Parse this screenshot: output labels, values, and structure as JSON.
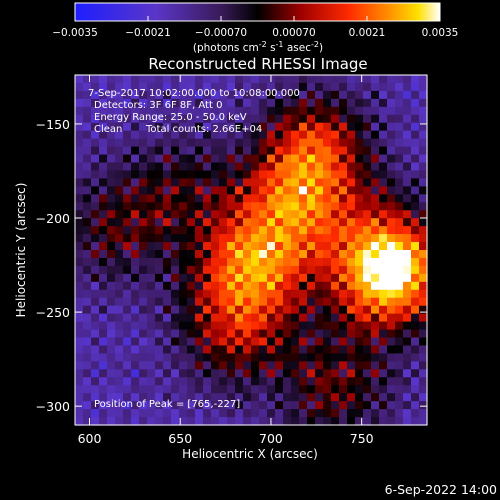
{
  "colorbar": {
    "tick_labels": [
      "-0.0035",
      "-0.0021",
      "-0.00070",
      "0.00070",
      "0.0021",
      "0.0035"
    ],
    "range": [
      -0.0035,
      0.0035
    ],
    "unit_parts": [
      "(photons cm",
      "-2",
      " s",
      "-1",
      " asec",
      "-2",
      ")"
    ]
  },
  "chart_data": {
    "type": "heatmap",
    "title": "Reconstructed RHESSI Image",
    "xlabel": "Heliocentric X (arcsec)",
    "ylabel": "Heliocentric Y (arcsec)",
    "xlim": [
      592,
      786
    ],
    "ylim": [
      -310,
      -124
    ],
    "x_ticks": [
      600,
      650,
      700,
      750
    ],
    "x_tick_labels": [
      "600",
      "650",
      "700",
      "750"
    ],
    "y_ticks": [
      -150,
      -200,
      -250,
      -300
    ],
    "y_tick_labels": [
      "-150",
      "-200",
      "-250",
      "-300"
    ],
    "colormap": "RHESSI red-temperature (blue → purple → black → red → orange → yellow → white)",
    "peak": [
      765,
      -227
    ],
    "annotations": {
      "line1": "7-Sep-2017 10:02:00.000 to 10:08:00.000",
      "line2": "Detectors: 3F 6F 8F, Att 0",
      "line3": "Energy Range: 25.0 - 50.0 keV",
      "line4_a": "Clean",
      "line4_b": "Total counts: 2.66E+04",
      "peak_text": "Position of Peak = [765,-227]"
    },
    "sources": [
      {
        "x": 765,
        "y": -227,
        "strength": 1.0
      },
      {
        "x": 725,
        "y": -165,
        "strength": 0.55
      },
      {
        "x": 690,
        "y": -225,
        "strength": 0.6
      },
      {
        "x": 712,
        "y": -195,
        "strength": 0.45
      },
      {
        "x": 678,
        "y": -260,
        "strength": 0.4
      },
      {
        "x": 735,
        "y": -290,
        "strength": 0.35
      },
      {
        "x": 612,
        "y": -205,
        "strength": 0.3
      },
      {
        "x": 650,
        "y": -185,
        "strength": 0.25
      }
    ]
  },
  "footer": {
    "timestamp": "6-Sep-2022 14:00"
  }
}
